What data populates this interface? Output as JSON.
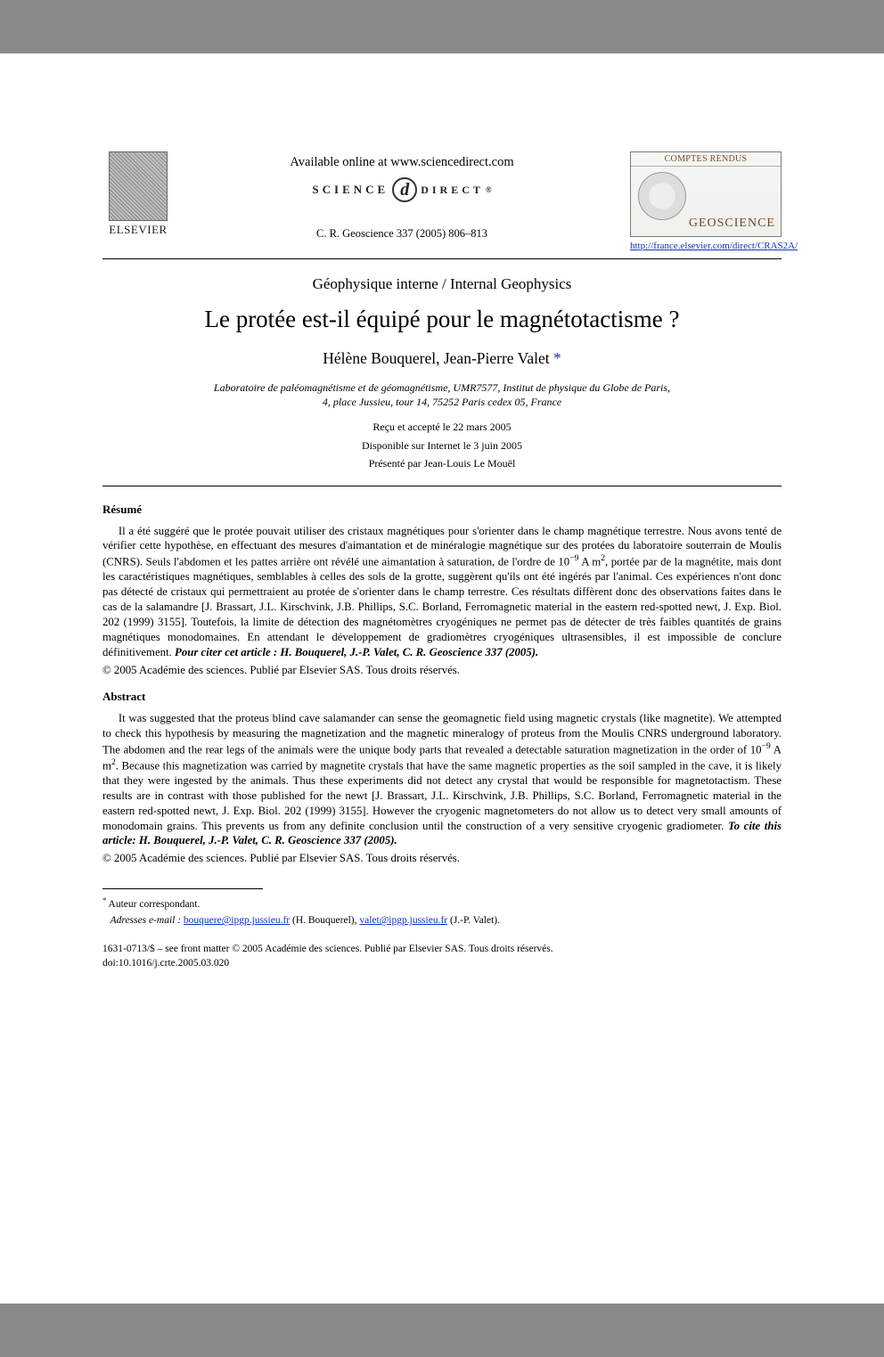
{
  "header": {
    "elsevier_label": "ELSEVIER",
    "available_online": "Available online at www.sciencedirect.com",
    "scidirect_left": "SCIENCE",
    "scidirect_d": "d",
    "scidirect_right": "DIRECT",
    "scidirect_reg": "®",
    "journal_cite": "C. R. Geoscience 337 (2005) 806–813",
    "cr_top": "COMPTES RENDUS",
    "cr_bottom": "GEOSCIENCE",
    "cr_link": "http://france.elsevier.com/direct/CRAS2A/"
  },
  "article": {
    "section_label": "Géophysique interne / Internal Geophysics",
    "title": "Le protée est-il équipé pour le magnétotactisme ?",
    "authors_prefix": "Hélène Bouquerel, Jean-Pierre Valet",
    "corr_mark": "*",
    "affiliation_line1": "Laboratoire de paléomagnétisme et de géomagnétisme, UMR7577, Institut de physique du Globe de Paris,",
    "affiliation_line2": "4, place Jussieu, tour 14, 75252 Paris cedex 05, France",
    "date_received": "Reçu et accepté le 22 mars 2005",
    "date_online": "Disponible sur Internet le 3 juin 2005",
    "date_presented": "Présenté par Jean-Louis Le Mouël"
  },
  "resume": {
    "heading": "Résumé",
    "body_a": "Il a été suggéré que le protée pouvait utiliser des cristaux magnétiques pour s'orienter dans le champ magnétique terrestre. Nous avons tenté de vérifier cette hypothèse, en effectuant des mesures d'aimantation et de minéralogie magnétique sur des protées du laboratoire souterrain de Moulis (CNRS). Seuls l'abdomen et les pattes arrière ont révélé une aimantation à saturation, de l'ordre de 10",
    "exp1": "−9",
    "body_b": " A m",
    "exp2": "2",
    "body_c": ", portée par de la magnétite, mais dont les caractéristiques magnétiques, semblables à celles des sols de la grotte, suggèrent qu'ils ont été ingérés par l'animal. Ces expériences n'ont donc pas détecté de cristaux qui permettraient au protée de s'orienter dans le champ terrestre. Ces résultats diffèrent donc des observations faites dans le cas de la salamandre [J. Brassart, J.L. Kirschvink, J.B. Phillips, S.C. Borland, Ferromagnetic material in the eastern red-spotted newt, J. Exp. Biol. 202 (1999) 3155]. Toutefois, la limite de détection des magnétomètres cryogéniques ne permet pas de détecter de très faibles quantités de grains magnétiques monodomaines. En attendant le développement de gradiomètres cryogéniques ultrasensibles, il est impossible de conclure définitivement. ",
    "cite_label": "Pour citer cet article : H. Bouquerel, J.-P. Valet, C. R. Geoscience 337 (2005).",
    "copyright": "© 2005 Académie des sciences. Publié par Elsevier SAS. Tous droits réservés."
  },
  "abstract": {
    "heading": "Abstract",
    "body_a": "It was suggested that the proteus blind cave salamander can sense the geomagnetic field using magnetic crystals (like magnetite). We attempted to check this hypothesis by measuring the magnetization and the magnetic mineralogy of proteus from the Moulis CNRS underground laboratory. The abdomen and the rear legs of the animals were the unique body parts that revealed a detectable saturation magnetization in the order of 10",
    "exp1": "−9",
    "body_b": " A m",
    "exp2": "2",
    "body_c": ". Because this magnetization was carried by magnetite crystals that have the same magnetic properties as the soil sampled in the cave, it is likely that they were ingested by the animals. Thus these experiments did not detect any crystal that would be responsible for magnetotactism. These results are in contrast with those published for the newt [J. Brassart, J.L. Kirschvink, J.B. Phillips, S.C. Borland, Ferromagnetic material in the eastern red-spotted newt, J. Exp. Biol. 202 (1999) 3155]. However the cryogenic magnetometers do not allow us to detect very small amounts of monodomain grains. This prevents us from any definite conclusion until the construction of a very sensitive cryogenic gradiometer. ",
    "cite_label": "To cite this article: H. Bouquerel, J.-P. Valet, C. R. Geoscience 337 (2005).",
    "copyright": "© 2005 Académie des sciences. Publié par Elsevier SAS. Tous droits réservés."
  },
  "footnotes": {
    "corr_mark": "*",
    "corr_text": " Auteur correspondant.",
    "email_label": "Adresses e-mail : ",
    "email1": "bouquere@ipgp.jussieu.fr",
    "email1_who": " (H. Bouquerel), ",
    "email2": "valet@ipgp.jussieu.fr",
    "email2_who": " (J.-P. Valet)."
  },
  "bottom": {
    "line1": "1631-0713/$ – see front matter © 2005 Académie des sciences. Publié par Elsevier SAS. Tous droits réservés.",
    "line2": "doi:10.1016/j.crte.2005.03.020"
  },
  "colors": {
    "page_bg": "#ffffff",
    "outer_bg": "#8a8a8a",
    "text": "#000000",
    "link": "#1030c0",
    "cr_brown": "#6e4a24"
  }
}
